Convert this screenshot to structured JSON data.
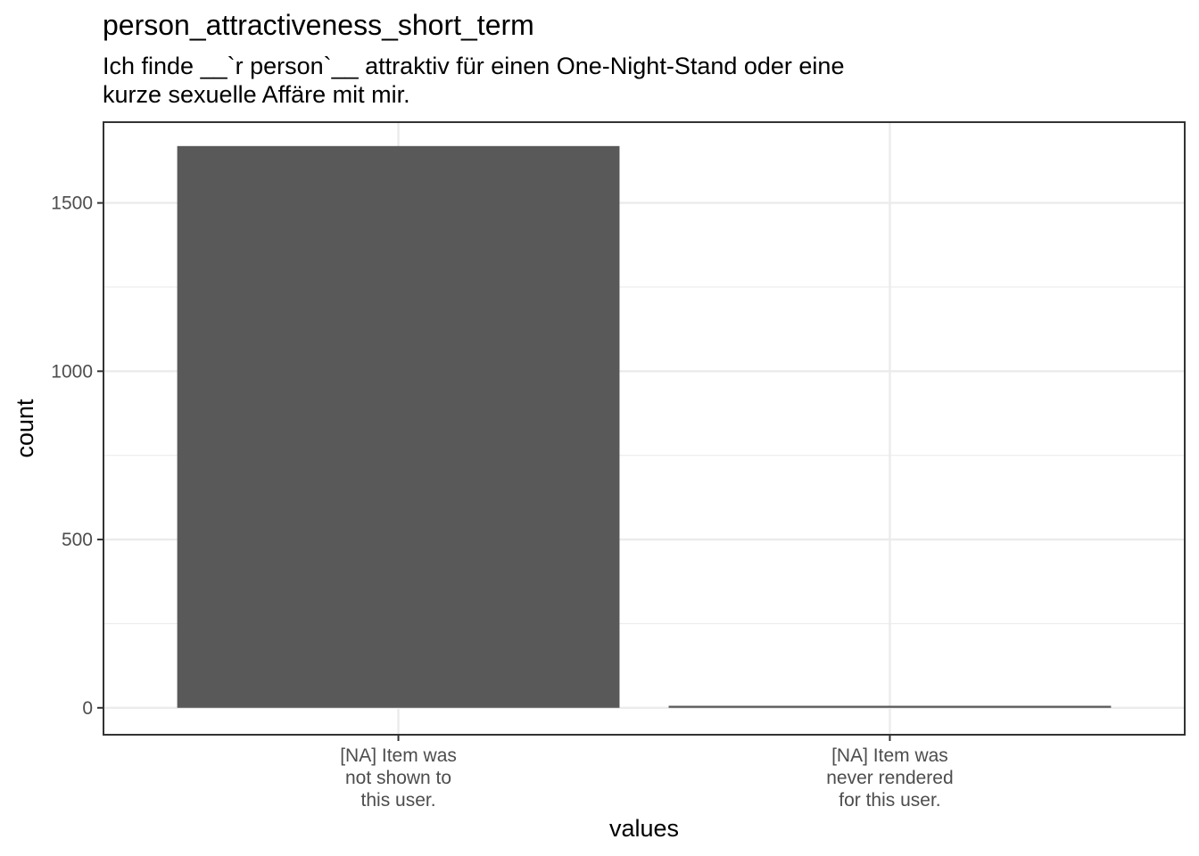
{
  "chart_data": {
    "type": "bar",
    "title": "person_attractiveness_short_term",
    "subtitle": "Ich finde __`r person`__ attraktiv für einen One-Night-Stand oder eine\nkurze sexuelle Affäre mit mir.",
    "xlabel": "values",
    "ylabel": "count",
    "categories": [
      [
        "[NA] Item was",
        "not shown to",
        "this user."
      ],
      [
        "[NA] Item was",
        "never rendered",
        "for this user."
      ]
    ],
    "values": [
      1669,
      6
    ],
    "ylim": [
      -80,
      1740
    ],
    "yticks": [
      0,
      500,
      1000,
      1500
    ],
    "grid": true,
    "bar_color": "#595959",
    "grid_color": "#ebebeb",
    "panel_border_color": "#333333"
  }
}
